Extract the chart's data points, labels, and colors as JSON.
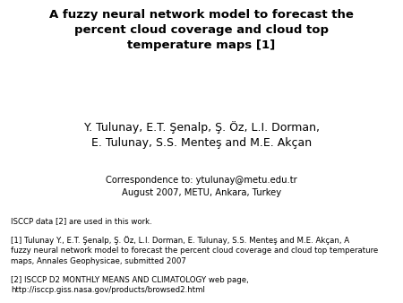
{
  "title_line1": "A fuzzy neural network model to forecast the",
  "title_line2": "percent cloud coverage and cloud top",
  "title_line3": "temperature maps [1]",
  "authors_line1": "Y. Tulunay, E.T. Şenalp, Ş. Öz, L.I. Dorman,",
  "authors_line2": "E. Tulunay, S.S. Menteş and M.E. Akçan",
  "correspondence_line1": "Correspondence to: ytulunay@metu.edu.tr",
  "correspondence_line2": "August 2007, METU, Ankara, Turkey",
  "note1": "ISCCP data [2] are used in this work.",
  "ref1_line1": "[1] Tulunay Y., E.T. Şenalp, Ş. Öz, L.I. Dorman, E. Tulunay, S.S. Menteş and M.E. Akçan, A",
  "ref1_line2": "fuzzy neural network model to forecast the percent cloud coverage and cloud top temperature",
  "ref1_line3": "maps, Annales Geophysicae, submitted 2007",
  "ref2_line1": "[2] ISCCP D2 MONTHLY MEANS AND CLIMATOLOGY web page,",
  "ref2_line2": "http://isccp.giss.nasa.gov/products/browsed2.html",
  "bg_color": "#ffffff",
  "text_color": "#000000",
  "title_fontsize": 9.5,
  "authors_fontsize": 9.0,
  "corr_fontsize": 7.2,
  "small_fontsize": 6.2
}
